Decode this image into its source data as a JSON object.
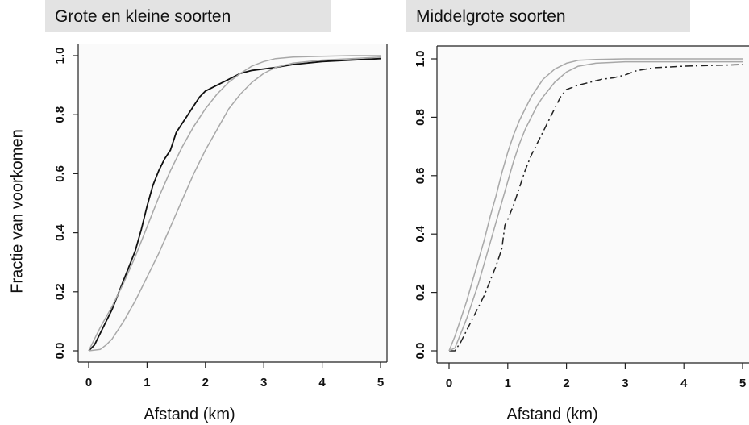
{
  "ylabel": "Fractie van voorkomen",
  "chart_data": [
    {
      "type": "line",
      "title": "Grote en kleine soorten",
      "xlabel": "Afstand (km)",
      "ylabel": "Fractie van voorkomen",
      "xlim": [
        0,
        5
      ],
      "ylim": [
        0,
        1
      ],
      "x_ticks": [
        "0",
        "1",
        "2",
        "3",
        "4",
        "5"
      ],
      "y_ticks": [
        "0.0",
        "0.2",
        "0.4",
        "0.6",
        "0.8",
        "1.0"
      ],
      "grid": false,
      "series": [
        {
          "style": "solid",
          "color": "#111111",
          "x": [
            0,
            0.1,
            0.2,
            0.3,
            0.4,
            0.5,
            0.6,
            0.7,
            0.8,
            0.9,
            1.0,
            1.1,
            1.2,
            1.3,
            1.4,
            1.5,
            1.6,
            1.7,
            1.8,
            1.9,
            2.0,
            2.2,
            2.4,
            2.6,
            2.8,
            3.0,
            3.2,
            3.5,
            4.0,
            4.5,
            5.0
          ],
          "y": [
            0.0,
            0.02,
            0.06,
            0.1,
            0.14,
            0.19,
            0.24,
            0.29,
            0.34,
            0.41,
            0.49,
            0.56,
            0.61,
            0.65,
            0.68,
            0.74,
            0.77,
            0.8,
            0.83,
            0.86,
            0.88,
            0.9,
            0.92,
            0.94,
            0.95,
            0.955,
            0.96,
            0.97,
            0.98,
            0.985,
            0.99
          ]
        },
        {
          "style": "solid",
          "color": "#a8a8a8",
          "x": [
            0,
            0.2,
            0.4,
            0.6,
            0.8,
            1.0,
            1.2,
            1.4,
            1.6,
            1.8,
            2.0,
            2.2,
            2.4,
            2.6,
            2.8,
            3.0,
            3.2,
            3.5,
            4.0,
            4.5,
            5.0
          ],
          "y": [
            0.0,
            0.08,
            0.15,
            0.23,
            0.32,
            0.42,
            0.52,
            0.61,
            0.69,
            0.76,
            0.82,
            0.87,
            0.91,
            0.94,
            0.965,
            0.98,
            0.99,
            0.995,
            0.998,
            1.0,
            1.0
          ]
        },
        {
          "style": "solid",
          "color": "#a8a8a8",
          "x": [
            0,
            0.2,
            0.3,
            0.4,
            0.5,
            0.6,
            0.8,
            1.0,
            1.2,
            1.4,
            1.6,
            1.8,
            2.0,
            2.2,
            2.4,
            2.6,
            2.8,
            3.0,
            3.2,
            3.5,
            4.0,
            4.5,
            5.0
          ],
          "y": [
            0.0,
            0.005,
            0.02,
            0.04,
            0.07,
            0.1,
            0.17,
            0.25,
            0.33,
            0.42,
            0.51,
            0.6,
            0.68,
            0.75,
            0.82,
            0.87,
            0.91,
            0.94,
            0.96,
            0.975,
            0.985,
            0.99,
            0.995
          ]
        }
      ]
    },
    {
      "type": "line",
      "title": "Middelgrote soorten",
      "xlabel": "Afstand (km)",
      "ylabel": "",
      "xlim": [
        0,
        5
      ],
      "ylim": [
        0,
        1
      ],
      "x_ticks": [
        "0",
        "1",
        "2",
        "3",
        "4",
        "5"
      ],
      "y_ticks": [
        "0.0",
        "0.2",
        "0.4",
        "0.6",
        "0.8",
        "1.0"
      ],
      "grid": false,
      "series": [
        {
          "style": "dashed",
          "color": "#222222",
          "x": [
            0,
            0.1,
            0.2,
            0.3,
            0.4,
            0.5,
            0.6,
            0.7,
            0.8,
            0.9,
            0.95,
            1.0,
            1.1,
            1.2,
            1.3,
            1.4,
            1.5,
            1.6,
            1.7,
            1.8,
            1.9,
            2.0,
            2.2,
            2.4,
            2.6,
            2.8,
            3.0,
            3.2,
            3.5,
            4.0,
            4.5,
            5.0
          ],
          "y": [
            0.0,
            0.0,
            0.03,
            0.07,
            0.11,
            0.15,
            0.19,
            0.24,
            0.29,
            0.35,
            0.43,
            0.45,
            0.5,
            0.56,
            0.62,
            0.67,
            0.71,
            0.75,
            0.79,
            0.83,
            0.87,
            0.895,
            0.91,
            0.92,
            0.93,
            0.935,
            0.945,
            0.96,
            0.97,
            0.975,
            0.978,
            0.98
          ]
        },
        {
          "style": "solid",
          "color": "#a8a8a8",
          "x": [
            0,
            0.1,
            0.2,
            0.3,
            0.4,
            0.5,
            0.6,
            0.7,
            0.8,
            0.9,
            1.0,
            1.1,
            1.2,
            1.3,
            1.4,
            1.5,
            1.6,
            1.8,
            2.0,
            2.2,
            2.5,
            3.0,
            4.0,
            5.0
          ],
          "y": [
            0.0,
            0.05,
            0.11,
            0.17,
            0.24,
            0.31,
            0.38,
            0.46,
            0.53,
            0.61,
            0.68,
            0.74,
            0.79,
            0.83,
            0.87,
            0.9,
            0.93,
            0.965,
            0.985,
            0.995,
            0.998,
            1.0,
            1.0,
            1.0
          ]
        },
        {
          "style": "solid",
          "color": "#a8a8a8",
          "x": [
            0,
            0.1,
            0.2,
            0.3,
            0.4,
            0.5,
            0.6,
            0.7,
            0.8,
            0.9,
            1.0,
            1.1,
            1.2,
            1.3,
            1.4,
            1.5,
            1.6,
            1.8,
            2.0,
            2.2,
            2.5,
            3.0,
            4.0,
            5.0
          ],
          "y": [
            0.0,
            0.01,
            0.06,
            0.11,
            0.17,
            0.23,
            0.3,
            0.37,
            0.44,
            0.51,
            0.58,
            0.65,
            0.71,
            0.76,
            0.8,
            0.84,
            0.87,
            0.92,
            0.955,
            0.975,
            0.985,
            0.99,
            0.99,
            0.99
          ]
        }
      ]
    }
  ]
}
